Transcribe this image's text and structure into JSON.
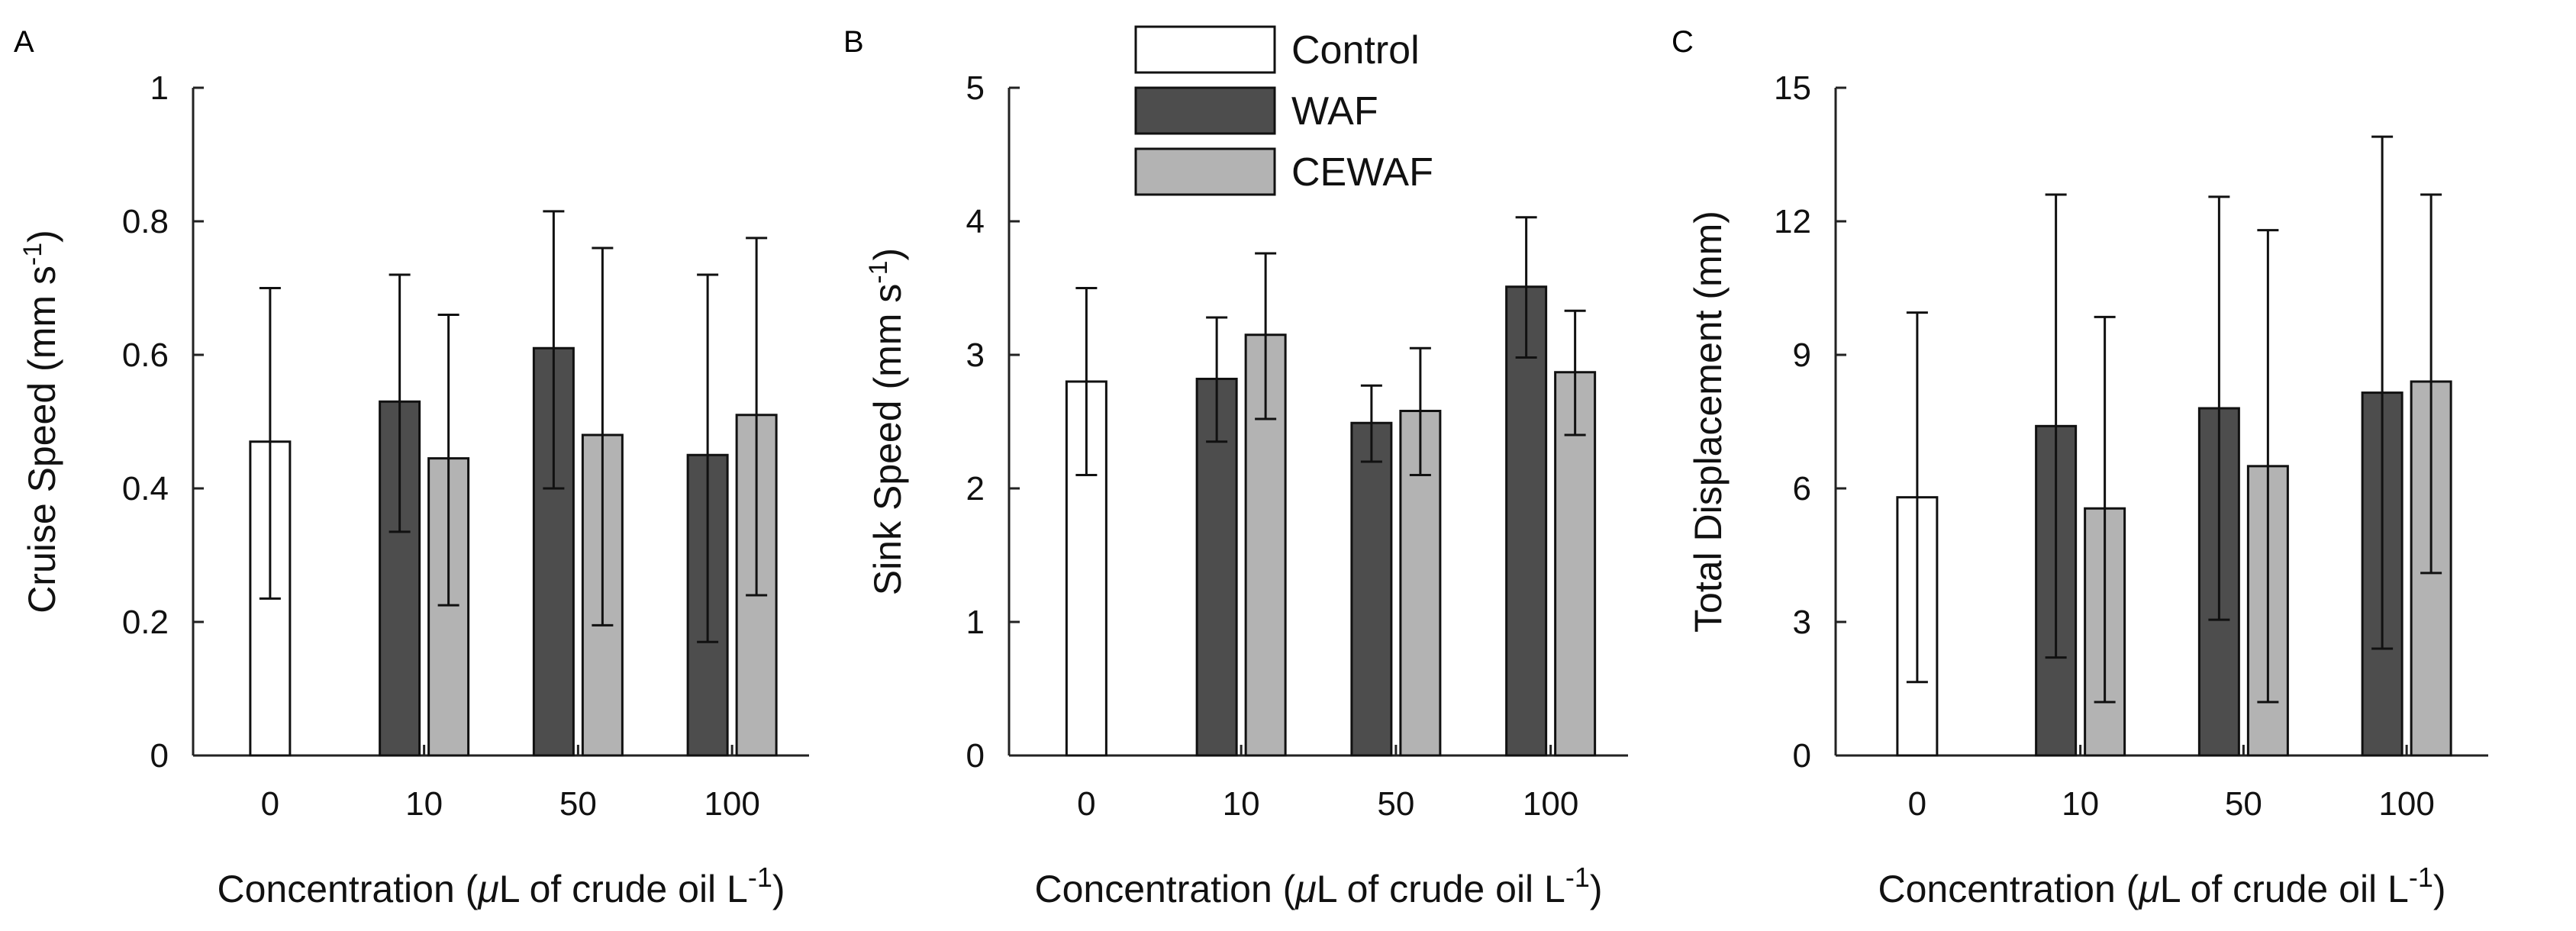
{
  "colors": {
    "Control": "#ffffff",
    "WAF": "#4d4d4d",
    "CEWAF": "#b3b3b3"
  },
  "legend": {
    "entries": [
      "Control",
      "WAF",
      "CEWAF"
    ]
  },
  "chart_data": [
    {
      "type": "bar",
      "panel": "A",
      "categories": [
        "0",
        "10",
        "50",
        "100"
      ],
      "series": [
        {
          "name": "Control",
          "values": [
            0.47,
            null,
            null,
            null
          ],
          "err_low": [
            0.235,
            null,
            null,
            null
          ],
          "err_high": [
            0.7,
            null,
            null,
            null
          ]
        },
        {
          "name": "WAF",
          "values": [
            null,
            0.53,
            0.61,
            0.45
          ],
          "err_low": [
            null,
            0.335,
            0.4,
            0.17
          ],
          "err_high": [
            null,
            0.72,
            0.815,
            0.72
          ]
        },
        {
          "name": "CEWAF",
          "values": [
            null,
            0.445,
            0.48,
            0.51
          ],
          "err_low": [
            null,
            0.225,
            0.195,
            0.24
          ],
          "err_high": [
            null,
            0.66,
            0.76,
            0.775
          ]
        }
      ],
      "ylabel_main": "Cruise Speed (mm s",
      "ylabel_sup": "-1",
      "ylabel_close": ")",
      "xlabel_pre": "Concentration (",
      "xlabel_mu": "μ",
      "xlabel_mid": "L of crude oil L",
      "xlabel_sup": "-1",
      "xlabel_close": ")",
      "ylim": [
        0,
        1
      ],
      "yticks": [
        0,
        0.2,
        0.4,
        0.6,
        0.8,
        1
      ],
      "ytick_labels": [
        "0",
        "0.2",
        "0.4",
        "0.6",
        "0.8",
        "1"
      ],
      "legend": false
    },
    {
      "type": "bar",
      "panel": "B",
      "categories": [
        "0",
        "10",
        "50",
        "100"
      ],
      "series": [
        {
          "name": "Control",
          "values": [
            2.8,
            null,
            null,
            null
          ],
          "err_low": [
            2.1,
            null,
            null,
            null
          ],
          "err_high": [
            3.5,
            null,
            null,
            null
          ]
        },
        {
          "name": "WAF",
          "values": [
            null,
            2.82,
            2.49,
            3.51
          ],
          "err_low": [
            null,
            2.35,
            2.2,
            2.98
          ],
          "err_high": [
            null,
            3.28,
            2.77,
            4.03
          ]
        },
        {
          "name": "CEWAF",
          "values": [
            null,
            3.15,
            2.58,
            2.87
          ],
          "err_low": [
            null,
            2.52,
            2.1,
            2.4
          ],
          "err_high": [
            null,
            3.76,
            3.05,
            3.33
          ]
        }
      ],
      "ylabel_main": "Sink Speed (mm s",
      "ylabel_sup": "-1",
      "ylabel_close": ")",
      "xlabel_pre": "Concentration (",
      "xlabel_mu": "μ",
      "xlabel_mid": "L of crude oil L",
      "xlabel_sup": "-1",
      "xlabel_close": ")",
      "ylim": [
        0,
        5
      ],
      "yticks": [
        0,
        1,
        2,
        3,
        4,
        5
      ],
      "ytick_labels": [
        "0",
        "1",
        "2",
        "3",
        "4",
        "5"
      ],
      "legend": true
    },
    {
      "type": "bar",
      "panel": "C",
      "categories": [
        "0",
        "10",
        "50",
        "100"
      ],
      "series": [
        {
          "name": "Control",
          "values": [
            5.8,
            null,
            null,
            null
          ],
          "err_low": [
            1.65,
            null,
            null,
            null
          ],
          "err_high": [
            9.95,
            null,
            null,
            null
          ]
        },
        {
          "name": "WAF",
          "values": [
            null,
            7.4,
            7.8,
            8.15
          ],
          "err_low": [
            null,
            2.2,
            3.05,
            2.4
          ],
          "err_high": [
            null,
            12.6,
            12.55,
            13.9
          ]
        },
        {
          "name": "CEWAF",
          "values": [
            null,
            5.55,
            6.5,
            8.4
          ],
          "err_low": [
            null,
            1.2,
            1.2,
            4.1
          ],
          "err_high": [
            null,
            9.85,
            11.8,
            12.6
          ]
        }
      ],
      "ylabel_main": "Total Displacement (mm)",
      "ylabel_sup": "",
      "ylabel_close": "",
      "xlabel_pre": "Concentration (",
      "xlabel_mu": "μ",
      "xlabel_mid": "L of crude oil L",
      "xlabel_sup": "-1",
      "xlabel_close": ")",
      "ylim": [
        0,
        15
      ],
      "yticks": [
        0,
        3,
        6,
        9,
        12,
        15
      ],
      "ytick_labels": [
        "0",
        "3",
        "6",
        "9",
        "12",
        "15"
      ],
      "legend": false
    }
  ]
}
